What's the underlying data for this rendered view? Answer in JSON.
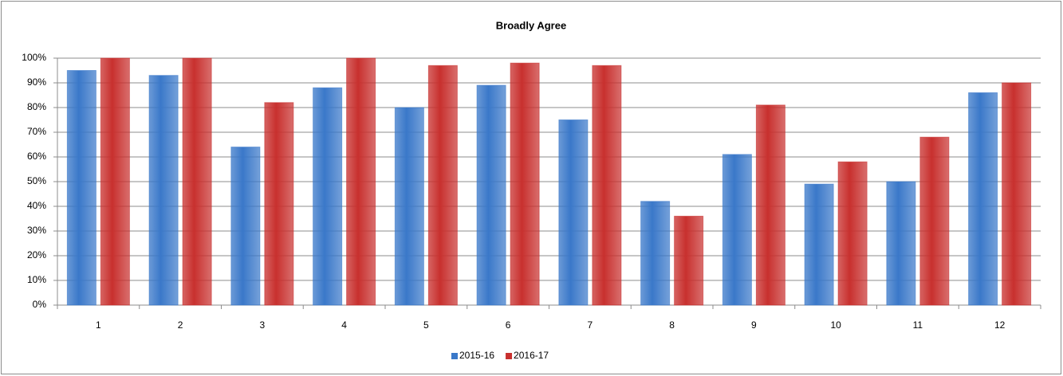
{
  "chart_data": {
    "type": "bar",
    "title": "Broadly Agree",
    "categories": [
      "1",
      "2",
      "3",
      "4",
      "5",
      "6",
      "7",
      "8",
      "9",
      "10",
      "11",
      "12"
    ],
    "series": [
      {
        "name": "2015-16",
        "color": "#3a78c9",
        "values": [
          95,
          93,
          64,
          88,
          80,
          89,
          75,
          42,
          61,
          49,
          50,
          86
        ]
      },
      {
        "name": "2016-17",
        "color": "#c8302e",
        "values": [
          100,
          100,
          82,
          100,
          97,
          98,
          97,
          36,
          81,
          58,
          68,
          90
        ]
      }
    ],
    "ylim": [
      0,
      100
    ],
    "yticks": [
      {
        "value": 0,
        "label": "0%"
      },
      {
        "value": 10,
        "label": "10%"
      },
      {
        "value": 20,
        "label": "20%"
      },
      {
        "value": 30,
        "label": "30%"
      },
      {
        "value": 40,
        "label": "40%"
      },
      {
        "value": 50,
        "label": "50%"
      },
      {
        "value": 60,
        "label": "60%"
      },
      {
        "value": 70,
        "label": "70%"
      },
      {
        "value": 80,
        "label": "80%"
      },
      {
        "value": 90,
        "label": "90%"
      },
      {
        "value": 100,
        "label": "100%"
      }
    ],
    "grid": true,
    "legend": "bottom"
  }
}
